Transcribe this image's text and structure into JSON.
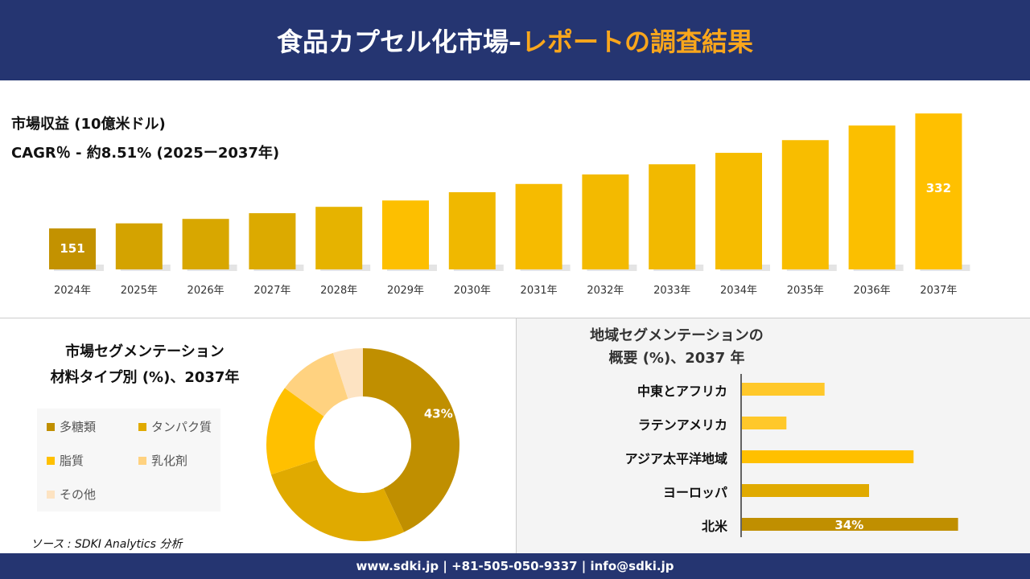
{
  "header": {
    "title_main": "食品カプセル化市場–",
    "title_accent": "レポートの調査結果"
  },
  "colors": {
    "navy": "#253571",
    "accent": "#f9a61c"
  },
  "chart_data": [
    {
      "type": "bar",
      "title": "市場収益 (10億米ドル)",
      "subtitle": "CAGR％ - 約8.51% (2025ー2037年)",
      "categories": [
        "2024年",
        "2025年",
        "2026年",
        "2027年",
        "2028年",
        "2029年",
        "2030年",
        "2031年",
        "2032年",
        "2033年",
        "2034年",
        "2035年",
        "2036年",
        "2037年"
      ],
      "values": [
        151,
        159,
        166,
        175,
        185,
        195,
        208,
        221,
        236,
        252,
        270,
        290,
        313,
        332
      ],
      "data_labels": {
        "0": "151",
        "13": "332"
      },
      "colors": [
        "#c39200",
        "#d4a300",
        "#d8a700",
        "#dcaa00",
        "#e6b300",
        "#fdbf00",
        "#f0b800",
        "#f6bb00",
        "#f3ba00",
        "#f2b900",
        "#f6bc00",
        "#f8bd00",
        "#fbbf00",
        "#ffc000"
      ]
    },
    {
      "type": "pie",
      "donut": true,
      "title": "市場セグメンテーション\n材料タイプ別 (%)、2037年",
      "title_lines": [
        "市場セグメンテーション",
        "材料タイプ別 (%)、2037年"
      ],
      "categories": [
        "多糖類",
        "タンパク質",
        "脂質",
        "乳化剤",
        "その他"
      ],
      "values": [
        43,
        27,
        15,
        10,
        5
      ],
      "data_labels": {
        "0": "43%"
      },
      "colors": [
        "#c08f00",
        "#e0aa00",
        "#ffc000",
        "#ffd280",
        "#fde3c2"
      ],
      "legend": "left"
    },
    {
      "type": "bar",
      "orientation": "horizontal",
      "title_lines": [
        "地域セグメンテーションの",
        "概要 (%)、2037 年"
      ],
      "categories": [
        "中東とアフリカ",
        "ラテンアメリカ",
        "アジア太平洋地域",
        "ヨーロッパ",
        "北米"
      ],
      "values": [
        13,
        7,
        27,
        20,
        34
      ],
      "data_labels": {
        "4": "34%"
      },
      "colors": [
        "#ffc82a",
        "#ffc82a",
        "#ffc000",
        "#e0aa00",
        "#c08f00"
      ]
    }
  ],
  "source": "ソース : SDKI Analytics 分析",
  "footer": "www.sdki.jp | +81-505-050-9337 | info@sdki.jp"
}
